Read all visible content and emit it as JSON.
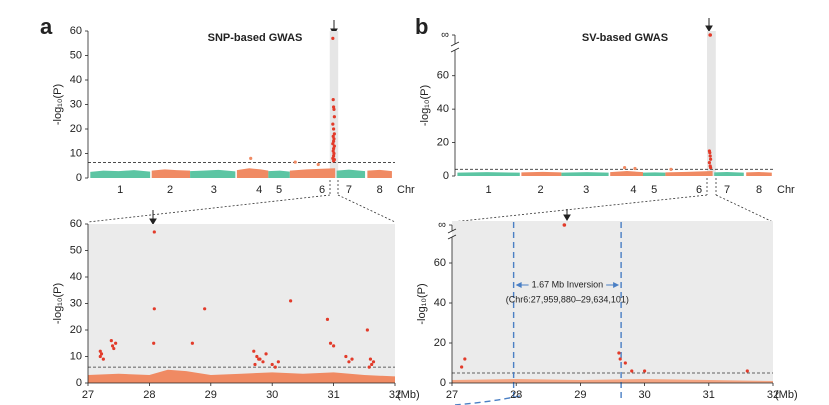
{
  "chart_data": [
    {
      "type": "scatter",
      "panel": "a",
      "title": "SNP-based GWAS",
      "ylabel": "-log₁₀(P)",
      "xlabel": "Chr",
      "xlim": [
        0,
        400
      ],
      "xticks": [
        {
          "value": 42,
          "label": "1"
        },
        {
          "value": 107,
          "label": "2"
        },
        {
          "value": 164,
          "label": "3"
        },
        {
          "value": 223,
          "label": "4"
        },
        {
          "value": 249,
          "label": "5"
        },
        {
          "value": 305,
          "label": "6"
        },
        {
          "value": 340,
          "label": "7"
        },
        {
          "value": 380,
          "label": "8"
        }
      ],
      "ylim": [
        0,
        60
      ],
      "yticks": [
        0,
        10,
        20,
        30,
        40,
        50,
        60
      ],
      "threshold": 6.3,
      "highlight": [
        315,
        326
      ],
      "envelope": [
        {
          "color": "#5cc5a3",
          "x": [
            3,
            20,
            40,
            60,
            81
          ],
          "values": [
            2.5,
            3,
            2.8,
            3.2,
            2.6
          ]
        },
        {
          "color": "#f08a63",
          "x": [
            83,
            100,
            115,
            133
          ],
          "values": [
            3,
            3.5,
            3.2,
            3
          ]
        },
        {
          "color": "#5cc5a3",
          "x": [
            133,
            150,
            170,
            192
          ],
          "values": [
            2.8,
            3,
            3.3,
            2.7
          ]
        },
        {
          "color": "#f08a63",
          "x": [
            194,
            210,
            225,
            235
          ],
          "values": [
            3.2,
            4,
            3.5,
            3
          ]
        },
        {
          "color": "#5cc5a3",
          "x": [
            235,
            250,
            263
          ],
          "values": [
            2.8,
            3,
            2.6
          ]
        },
        {
          "color": "#f08a63",
          "x": [
            263,
            285,
            305,
            322
          ],
          "values": [
            3,
            3.5,
            3.8,
            4
          ]
        },
        {
          "color": "#5cc5a3",
          "x": [
            324,
            340,
            361
          ],
          "values": [
            3,
            3.4,
            2.8
          ]
        },
        {
          "color": "#f08a63",
          "x": [
            364,
            380,
            396
          ],
          "values": [
            3,
            3.3,
            2.8
          ]
        }
      ],
      "series": [
        {
          "color": "#e23b2a",
          "x": [
            319,
            319.5,
            320,
            320.5,
            321,
            319,
            320,
            321,
            319.5,
            320.5,
            320,
            319,
            321,
            320,
            319.5,
            320.5,
            320,
            319,
            321,
            320
          ],
          "values": [
            57,
            32,
            29,
            28,
            25,
            22,
            20,
            18,
            17,
            16,
            15,
            14,
            13,
            12,
            11,
            10,
            9,
            8,
            7.5,
            7
          ]
        },
        {
          "color": "#f08a63",
          "x": [
            212,
            270,
            300
          ],
          "values": [
            8,
            6.5,
            5.5
          ]
        }
      ]
    },
    {
      "type": "scatter",
      "panel": "b",
      "title": "SV-based GWAS",
      "ylabel": "-log₁₀(P)",
      "xlabel": "Chr",
      "xlim": [
        0,
        400
      ],
      "xticks": [
        {
          "value": 42,
          "label": "1"
        },
        {
          "value": 107,
          "label": "2"
        },
        {
          "value": 164,
          "label": "3"
        },
        {
          "value": 223,
          "label": "4"
        },
        {
          "value": 249,
          "label": "5"
        },
        {
          "value": 305,
          "label": "6"
        },
        {
          "value": 340,
          "label": "7"
        },
        {
          "value": 380,
          "label": "8"
        }
      ],
      "ylim": [
        0,
        70
      ],
      "yticks": [
        0,
        20,
        40,
        60
      ],
      "inf_label": "∞",
      "threshold": 4,
      "highlight": [
        315,
        326
      ],
      "envelope": [
        {
          "color": "#5cc5a3",
          "x": [
            3,
            40,
            81
          ],
          "values": [
            2,
            2.3,
            2
          ]
        },
        {
          "color": "#f08a63",
          "x": [
            83,
            110,
            133
          ],
          "values": [
            2.2,
            2.5,
            2.2
          ]
        },
        {
          "color": "#5cc5a3",
          "x": [
            133,
            165,
            192
          ],
          "values": [
            2,
            2.3,
            2
          ]
        },
        {
          "color": "#f08a63",
          "x": [
            194,
            215,
            235
          ],
          "values": [
            2.3,
            3,
            2.3
          ]
        },
        {
          "color": "#5cc5a3",
          "x": [
            235,
            250,
            263
          ],
          "values": [
            2,
            2.2,
            2
          ]
        },
        {
          "color": "#f08a63",
          "x": [
            263,
            290,
            322
          ],
          "values": [
            2.2,
            2.5,
            3
          ]
        },
        {
          "color": "#5cc5a3",
          "x": [
            324,
            340,
            361
          ],
          "values": [
            2.2,
            2.4,
            2
          ]
        },
        {
          "color": "#f08a63",
          "x": [
            364,
            380,
            396
          ],
          "values": [
            2.2,
            2.4,
            2
          ]
        }
      ],
      "series": [
        {
          "color": "#e23b2a",
          "x": [
            318,
            318.5,
            319,
            319.5,
            318,
            319,
            319.5
          ],
          "values": [
            15,
            14,
            12,
            10,
            8,
            6,
            5
          ]
        },
        {
          "color": "#f08a63",
          "x": [
            212,
            225,
            270
          ],
          "values": [
            5,
            4.5,
            4
          ]
        }
      ],
      "inf_series": {
        "color": "#e23b2a",
        "x": [
          319
        ]
      }
    },
    {
      "type": "scatter",
      "ylabel": "-log₁₀(P)",
      "xlabel": "(Mb)",
      "xlim": [
        27,
        32
      ],
      "xticks": [
        27,
        28,
        29,
        30,
        31,
        32
      ],
      "ylim": [
        0,
        60
      ],
      "yticks": [
        0,
        10,
        20,
        30,
        40,
        50,
        60
      ],
      "threshold": 6,
      "envelope": [
        {
          "color": "#f08a63",
          "x": [
            27,
            27.5,
            28,
            28.3,
            28.6,
            29,
            29.5,
            30,
            30.5,
            31,
            31.5,
            32
          ],
          "values": [
            3,
            3.5,
            3,
            5,
            4.5,
            3,
            3.5,
            4,
            3.5,
            4,
            3,
            2.5
          ]
        }
      ],
      "series": [
        {
          "color": "#e23b2a",
          "x": [
            28.08,
            28.08,
            28.9,
            30.3,
            30.9,
            31.55,
            27.2,
            27.2,
            27.22,
            27.25,
            27.38,
            27.4,
            27.42,
            27.45,
            28.07,
            28.7,
            29.7,
            29.75,
            29.8,
            29.85,
            29.9,
            29.72,
            29.78,
            30.0,
            30.05,
            30.1,
            30.95,
            31.0,
            31.2,
            31.25,
            31.3,
            31.6,
            31.62,
            31.58,
            31.65
          ],
          "values": [
            57,
            28,
            28,
            31,
            24,
            20,
            12,
            10,
            11,
            9,
            16,
            14,
            13,
            15,
            15,
            15,
            12,
            10,
            9,
            8,
            11,
            7,
            9,
            7,
            6,
            8,
            15,
            14,
            10,
            8,
            9,
            9,
            7,
            6,
            8
          ]
        }
      ]
    },
    {
      "type": "scatter",
      "ylabel": "-log₁₀(P)",
      "xlabel": "(Mb)",
      "xlim": [
        27,
        32
      ],
      "xticks": [
        27,
        28,
        29,
        30,
        31,
        32
      ],
      "ylim": [
        0,
        70
      ],
      "yticks": [
        0,
        20,
        40,
        60
      ],
      "inf_label": "∞",
      "threshold": 5,
      "envelope": [
        {
          "color": "#f4a583",
          "x": [
            27,
            28,
            29,
            30,
            31,
            32
          ],
          "values": [
            1.5,
            2,
            1.5,
            2,
            1.5,
            1
          ]
        }
      ],
      "series": [
        {
          "color": "#e23b2a",
          "x": [
            27.15,
            27.2,
            29.6,
            29.62,
            29.7,
            29.8,
            30.0,
            31.6
          ],
          "values": [
            8,
            12,
            15,
            12,
            10,
            6,
            6,
            6
          ]
        }
      ],
      "inf_series": {
        "color": "#e23b2a",
        "x": [
          28.75
        ]
      },
      "inversion": {
        "start": 27.95988,
        "end": 29.634101,
        "label": "1.67 Mb Inversion",
        "range_label": "(Chr6:27,959,880–29,634,101)"
      }
    }
  ]
}
